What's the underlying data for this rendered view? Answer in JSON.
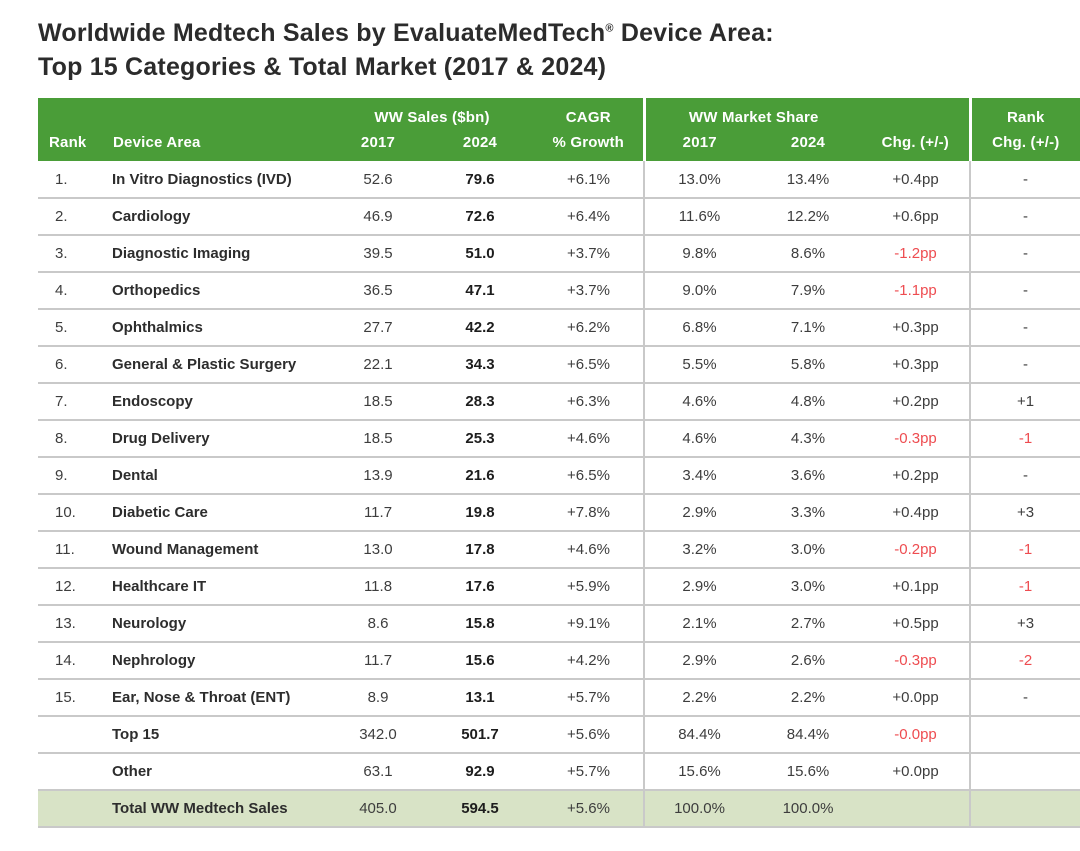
{
  "title": {
    "text_before_mark": "Worldwide Medtech Sales by EvaluateMedTech",
    "registered_mark": "®",
    "text_after_mark": " Device Area:",
    "line2": "Top 15 Categories & Total Market (2017 & 2024)"
  },
  "colors": {
    "header_green": "#4A9D38",
    "total_row_green": "#D8E3C6",
    "negative_red": "#EE4C50"
  },
  "chart_data": {
    "type": "table",
    "title": "Worldwide Medtech Sales by EvaluateMedTech® Device Area: Top 15 Categories & Total Market (2017 & 2024)",
    "group_headers": {
      "ww_sales": "WW Sales ($bn)",
      "cagr": "CAGR",
      "ww_market_share": "WW Market Share",
      "rank": "Rank"
    },
    "column_headers": {
      "rank": "Rank",
      "device_area": "Device Area",
      "sales_2017": "2017",
      "sales_2024": "2024",
      "cagr_growth": "% Growth",
      "share_2017": "2017",
      "share_2024": "2024",
      "share_chg": "Chg. (+/-)",
      "rank_chg": "Chg. (+/-)"
    },
    "rows": [
      {
        "rank": "1.",
        "device_area": "In Vitro Diagnostics (IVD)",
        "sales_2017": "52.6",
        "sales_2024": "79.6",
        "cagr_growth": "+6.1%",
        "share_2017": "13.0%",
        "share_2024": "13.4%",
        "share_chg": "+0.4pp",
        "rank_chg": "-"
      },
      {
        "rank": "2.",
        "device_area": "Cardiology",
        "sales_2017": "46.9",
        "sales_2024": "72.6",
        "cagr_growth": "+6.4%",
        "share_2017": "11.6%",
        "share_2024": "12.2%",
        "share_chg": "+0.6pp",
        "rank_chg": "-"
      },
      {
        "rank": "3.",
        "device_area": "Diagnostic Imaging",
        "sales_2017": "39.5",
        "sales_2024": "51.0",
        "cagr_growth": "+3.7%",
        "share_2017": "9.8%",
        "share_2024": "8.6%",
        "share_chg": "-1.2pp",
        "rank_chg": "-"
      },
      {
        "rank": "4.",
        "device_area": "Orthopedics",
        "sales_2017": "36.5",
        "sales_2024": "47.1",
        "cagr_growth": "+3.7%",
        "share_2017": "9.0%",
        "share_2024": "7.9%",
        "share_chg": "-1.1pp",
        "rank_chg": "-"
      },
      {
        "rank": "5.",
        "device_area": "Ophthalmics",
        "sales_2017": "27.7",
        "sales_2024": "42.2",
        "cagr_growth": "+6.2%",
        "share_2017": "6.8%",
        "share_2024": "7.1%",
        "share_chg": "+0.3pp",
        "rank_chg": "-"
      },
      {
        "rank": "6.",
        "device_area": "General & Plastic Surgery",
        "sales_2017": "22.1",
        "sales_2024": "34.3",
        "cagr_growth": "+6.5%",
        "share_2017": "5.5%",
        "share_2024": "5.8%",
        "share_chg": "+0.3pp",
        "rank_chg": "-"
      },
      {
        "rank": "7.",
        "device_area": "Endoscopy",
        "sales_2017": "18.5",
        "sales_2024": "28.3",
        "cagr_growth": "+6.3%",
        "share_2017": "4.6%",
        "share_2024": "4.8%",
        "share_chg": "+0.2pp",
        "rank_chg": "+1"
      },
      {
        "rank": "8.",
        "device_area": "Drug Delivery",
        "sales_2017": "18.5",
        "sales_2024": "25.3",
        "cagr_growth": "+4.6%",
        "share_2017": "4.6%",
        "share_2024": "4.3%",
        "share_chg": "-0.3pp",
        "rank_chg": "-1"
      },
      {
        "rank": "9.",
        "device_area": "Dental",
        "sales_2017": "13.9",
        "sales_2024": "21.6",
        "cagr_growth": "+6.5%",
        "share_2017": "3.4%",
        "share_2024": "3.6%",
        "share_chg": "+0.2pp",
        "rank_chg": "-"
      },
      {
        "rank": "10.",
        "device_area": "Diabetic Care",
        "sales_2017": "11.7",
        "sales_2024": "19.8",
        "cagr_growth": "+7.8%",
        "share_2017": "2.9%",
        "share_2024": "3.3%",
        "share_chg": "+0.4pp",
        "rank_chg": "+3"
      },
      {
        "rank": "11.",
        "device_area": "Wound Management",
        "sales_2017": "13.0",
        "sales_2024": "17.8",
        "cagr_growth": "+4.6%",
        "share_2017": "3.2%",
        "share_2024": "3.0%",
        "share_chg": "-0.2pp",
        "rank_chg": "-1"
      },
      {
        "rank": "12.",
        "device_area": "Healthcare IT",
        "sales_2017": "11.8",
        "sales_2024": "17.6",
        "cagr_growth": "+5.9%",
        "share_2017": "2.9%",
        "share_2024": "3.0%",
        "share_chg": "+0.1pp",
        "rank_chg": "-1"
      },
      {
        "rank": "13.",
        "device_area": "Neurology",
        "sales_2017": "8.6",
        "sales_2024": "15.8",
        "cagr_growth": "+9.1%",
        "share_2017": "2.1%",
        "share_2024": "2.7%",
        "share_chg": "+0.5pp",
        "rank_chg": "+3"
      },
      {
        "rank": "14.",
        "device_area": "Nephrology",
        "sales_2017": "11.7",
        "sales_2024": "15.6",
        "cagr_growth": "+4.2%",
        "share_2017": "2.9%",
        "share_2024": "2.6%",
        "share_chg": "-0.3pp",
        "rank_chg": "-2"
      },
      {
        "rank": "15.",
        "device_area": "Ear, Nose & Throat (ENT)",
        "sales_2017": "8.9",
        "sales_2024": "13.1",
        "cagr_growth": "+5.7%",
        "share_2017": "2.2%",
        "share_2024": "2.2%",
        "share_chg": "+0.0pp",
        "rank_chg": "-"
      },
      {
        "rank": "",
        "device_area": "Top 15",
        "sales_2017": "342.0",
        "sales_2024": "501.7",
        "cagr_growth": "+5.6%",
        "share_2017": "84.4%",
        "share_2024": "84.4%",
        "share_chg": "-0.0pp",
        "rank_chg": ""
      },
      {
        "rank": "",
        "device_area": "Other",
        "sales_2017": "63.1",
        "sales_2024": "92.9",
        "cagr_growth": "+5.7%",
        "share_2017": "15.6%",
        "share_2024": "15.6%",
        "share_chg": "+0.0pp",
        "rank_chg": ""
      },
      {
        "rank": "",
        "device_area": "Total WW Medtech Sales",
        "sales_2017": "405.0",
        "sales_2024": "594.5",
        "cagr_growth": "+5.6%",
        "share_2017": "100.0%",
        "share_2024": "100.0%",
        "share_chg": "",
        "rank_chg": ""
      }
    ]
  }
}
